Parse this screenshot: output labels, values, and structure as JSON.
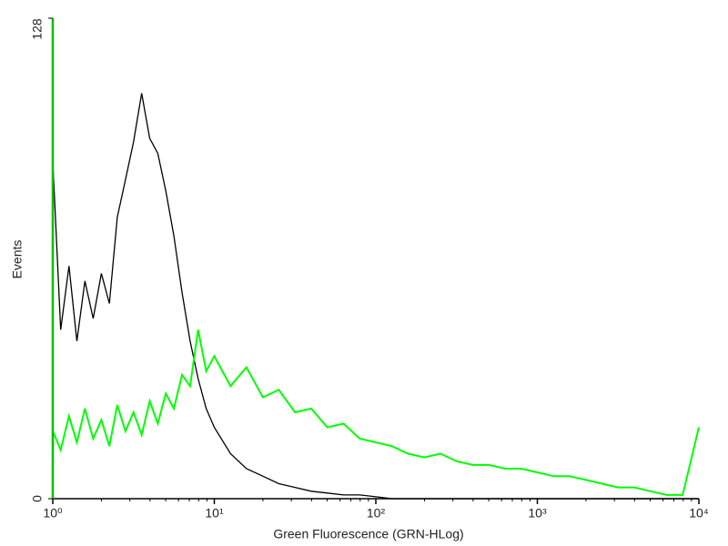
{
  "chart_data": {
    "type": "line",
    "x_label": "Green Fluorescence (GRN-HLog)",
    "y_label": "Events",
    "xscale": "log",
    "x": [
      1,
      1.12,
      1.26,
      1.41,
      1.58,
      1.78,
      2,
      2.24,
      2.51,
      2.82,
      3.16,
      3.55,
      3.98,
      4.47,
      5.01,
      5.62,
      6.31,
      7.08,
      7.94,
      8.91,
      10,
      12.6,
      15.8,
      20,
      25.1,
      31.6,
      39.8,
      50.1,
      63.1,
      79.4,
      100,
      126,
      158,
      200,
      251,
      316,
      398,
      501,
      631,
      794,
      1000,
      1260,
      1580,
      2000,
      2510,
      3160,
      3980,
      5010,
      6310,
      7940,
      10000
    ],
    "series": [
      {
        "color": "#000000",
        "values": [
          90,
          45,
          62,
          42,
          58,
          48,
          60,
          52,
          75,
          85,
          95,
          108,
          96,
          92,
          82,
          70,
          55,
          42,
          32,
          24,
          19,
          12,
          8,
          6,
          4,
          3,
          2,
          1.5,
          1,
          1,
          0.5,
          0,
          0,
          0,
          0,
          0,
          0,
          0,
          0,
          0,
          0,
          0,
          0,
          0,
          0,
          0,
          0,
          0,
          0,
          0,
          0
        ]
      },
      {
        "color": "#00ff00",
        "values": [
          18,
          13,
          22,
          15,
          24,
          16,
          21,
          14,
          25,
          18,
          23,
          17,
          26,
          20,
          28,
          24,
          33,
          30,
          45,
          34,
          38,
          30,
          35,
          27,
          29,
          23,
          24,
          19,
          20,
          16,
          15,
          14,
          12,
          11,
          12,
          10,
          9,
          9,
          8,
          8,
          7,
          6,
          6,
          5,
          4,
          3,
          3,
          2,
          1,
          1,
          19
        ]
      }
    ],
    "xlim": [
      1,
      10000
    ],
    "xticks": [
      {
        "value": 1,
        "label": "10⁰"
      },
      {
        "value": 10,
        "label": "10¹"
      },
      {
        "value": 100,
        "label": "10²"
      },
      {
        "value": 1000,
        "label": "10³"
      },
      {
        "value": 10000,
        "label": "10⁴"
      }
    ],
    "ylim": [
      0,
      128
    ],
    "yticks": [
      0,
      128
    ],
    "grid": false,
    "y_axis_color": "#00c000"
  }
}
